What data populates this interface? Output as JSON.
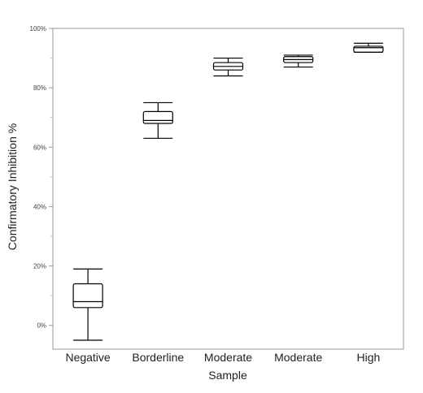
{
  "chart_data": {
    "type": "box",
    "xlabel": "Sample",
    "ylabel": "Confirmatory Inhibition %",
    "ylim": [
      -8,
      100
    ],
    "yticks": [
      0,
      20,
      40,
      60,
      80,
      100
    ],
    "ytick_labels": [
      "0%",
      "20%",
      "40%",
      "60%",
      "80%",
      "100%"
    ],
    "grid": false,
    "categories": [
      "Negative",
      "Borderline",
      "Moderate",
      "Moderate",
      "High"
    ],
    "boxes": [
      {
        "min": -5,
        "q1": 6,
        "median": 8,
        "q3": 14,
        "max": 19
      },
      {
        "min": 63,
        "q1": 68,
        "median": 69,
        "q3": 72,
        "max": 75
      },
      {
        "min": 84,
        "q1": 86,
        "median": 87.2,
        "q3": 88.5,
        "max": 90
      },
      {
        "min": 87,
        "q1": 88.5,
        "median": 89.5,
        "q3": 90.5,
        "max": 91
      },
      {
        "min": 92,
        "q1": 92,
        "median": 93.5,
        "q3": 94,
        "max": 95
      }
    ],
    "colors": {
      "box": "#000000",
      "frame": "#999999",
      "background": "#ffffff"
    }
  }
}
